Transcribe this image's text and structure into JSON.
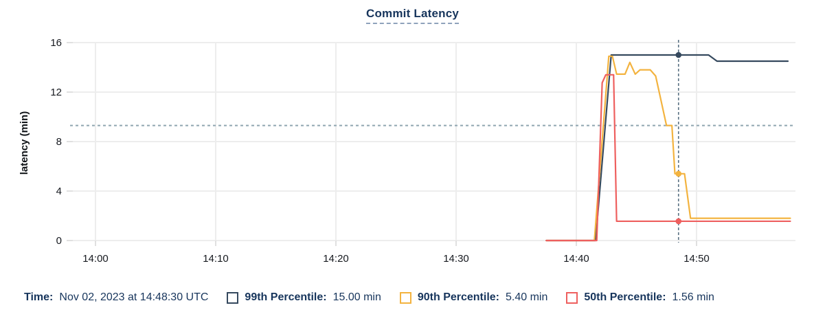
{
  "title": "Commit Latency",
  "y_axis": {
    "label": "latency (min)",
    "tick_values": [
      0,
      4,
      8,
      12,
      16
    ],
    "tick_labels": [
      "0",
      "4",
      "8",
      "12",
      "16"
    ],
    "max": 16
  },
  "x_axis": {
    "ticks": [
      {
        "label": "14:00",
        "t": 0
      },
      {
        "label": "14:10",
        "t": 10
      },
      {
        "label": "14:20",
        "t": 20
      },
      {
        "label": "14:30",
        "t": 30
      },
      {
        "label": "14:40",
        "t": 40
      },
      {
        "label": "14:50",
        "t": 50
      }
    ]
  },
  "chart_data": {
    "type": "line",
    "title": "Commit Latency",
    "xlabel": "",
    "ylabel": "latency (min)",
    "ylim": [
      0,
      16
    ],
    "grid": true,
    "x_unit": "minutes after 14:00",
    "x_domain": [
      -2.1,
      58.2
    ],
    "x_tick_labels": [
      "14:00",
      "14:10",
      "14:20",
      "14:30",
      "14:40",
      "14:50"
    ],
    "threshold_line": {
      "value": 9.3,
      "style": "dashed"
    },
    "cursor": {
      "t": 48.5,
      "time_label": "Nov 02, 2023 at 14:48:30 UTC"
    },
    "series": [
      {
        "name": "99th Percentile",
        "color": "#35495e",
        "value_at_cursor": 15.0,
        "unit": "min",
        "points": [
          [
            37.5,
            0
          ],
          [
            41.6,
            0
          ],
          [
            42.9,
            15.0
          ],
          [
            51.0,
            15.0
          ],
          [
            51.7,
            14.5
          ],
          [
            57.6,
            14.5
          ]
        ]
      },
      {
        "name": "90th Percentile",
        "color": "#f3b33f",
        "value_at_cursor": 5.4,
        "unit": "min",
        "points": [
          [
            37.5,
            0
          ],
          [
            41.5,
            0
          ],
          [
            42.7,
            14.9
          ],
          [
            43.0,
            14.9
          ],
          [
            43.35,
            13.45
          ],
          [
            44.05,
            13.45
          ],
          [
            44.45,
            14.4
          ],
          [
            44.9,
            13.45
          ],
          [
            45.3,
            13.8
          ],
          [
            46.15,
            13.8
          ],
          [
            46.6,
            13.3
          ],
          [
            47.5,
            9.3
          ],
          [
            47.95,
            9.3
          ],
          [
            48.2,
            5.4
          ],
          [
            49.0,
            5.4
          ],
          [
            49.5,
            1.8
          ],
          [
            57.8,
            1.8
          ]
        ]
      },
      {
        "name": "50th Percentile",
        "color": "#ee5f5e",
        "value_at_cursor": 1.56,
        "unit": "min",
        "points": [
          [
            37.5,
            0
          ],
          [
            41.7,
            0
          ],
          [
            42.15,
            12.75
          ],
          [
            42.45,
            13.4
          ],
          [
            43.1,
            13.4
          ],
          [
            43.35,
            1.56
          ],
          [
            57.8,
            1.56
          ]
        ]
      }
    ]
  },
  "legend": {
    "time_label": "Time:",
    "time_value": "Nov 02, 2023 at 14:48:30 UTC",
    "items": [
      {
        "label": "99th Percentile:",
        "value": "15.00 min",
        "color": "#35495e"
      },
      {
        "label": "90th Percentile:",
        "value": "5.40 min",
        "color": "#f3b33f"
      },
      {
        "label": "50th Percentile:",
        "value": "1.56 min",
        "color": "#ee5f5e"
      }
    ]
  },
  "colors": {
    "accent_text": "#17355c",
    "grid": "#ededed",
    "tick": "#e0e0e0",
    "tick_text": "#16191f",
    "threshold": "#8fa5b0",
    "cursor": "#5a7183",
    "background": "#ffffff"
  }
}
